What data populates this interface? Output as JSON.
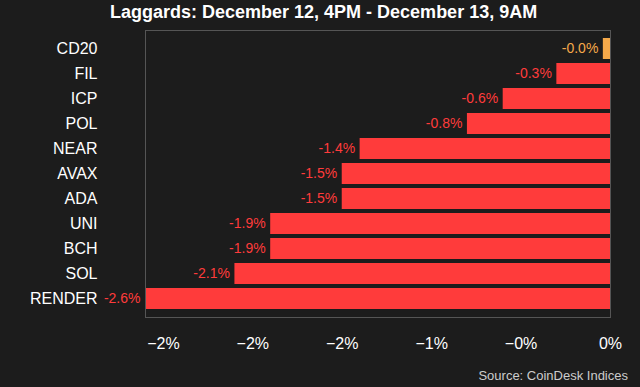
{
  "chart_data": {
    "type": "bar",
    "title": "Laggards: December 12, 4PM - December 13, 9AM",
    "caption": "Source: CoinDesk Indices",
    "orientation": "horizontal",
    "categories": [
      "CD20",
      "FIL",
      "ICP",
      "POL",
      "NEAR",
      "AVAX",
      "ADA",
      "UNI",
      "BCH",
      "SOL",
      "RENDER"
    ],
    "values": [
      -0.04,
      -0.3,
      -0.6,
      -0.8,
      -1.4,
      -1.5,
      -1.5,
      -1.9,
      -1.9,
      -2.1,
      -2.6
    ],
    "value_labels": [
      "-0.0%",
      "-0.3%",
      "-0.6%",
      "-0.8%",
      "-1.4%",
      "-1.5%",
      "-1.5%",
      "-1.9%",
      "-1.9%",
      "-2.1%",
      "-2.6%"
    ],
    "colors": [
      "#f5a94a",
      "#ff3b3b",
      "#ff3b3b",
      "#ff3b3b",
      "#ff3b3b",
      "#ff3b3b",
      "#ff3b3b",
      "#ff3b3b",
      "#ff3b3b",
      "#ff3b3b",
      "#ff3b3b"
    ],
    "xlim": [
      -2.6,
      0
    ],
    "xticks": [
      {
        "value": -2.5,
        "label": "−2%"
      },
      {
        "value": -2,
        "label": "−2%"
      },
      {
        "value": -1.5,
        "label": "−2%"
      },
      {
        "value": -1,
        "label": "−1%"
      },
      {
        "value": -0.5,
        "label": "−0%"
      },
      {
        "value": 0,
        "label": "0%"
      }
    ],
    "data_labels": true,
    "grid": false
  }
}
